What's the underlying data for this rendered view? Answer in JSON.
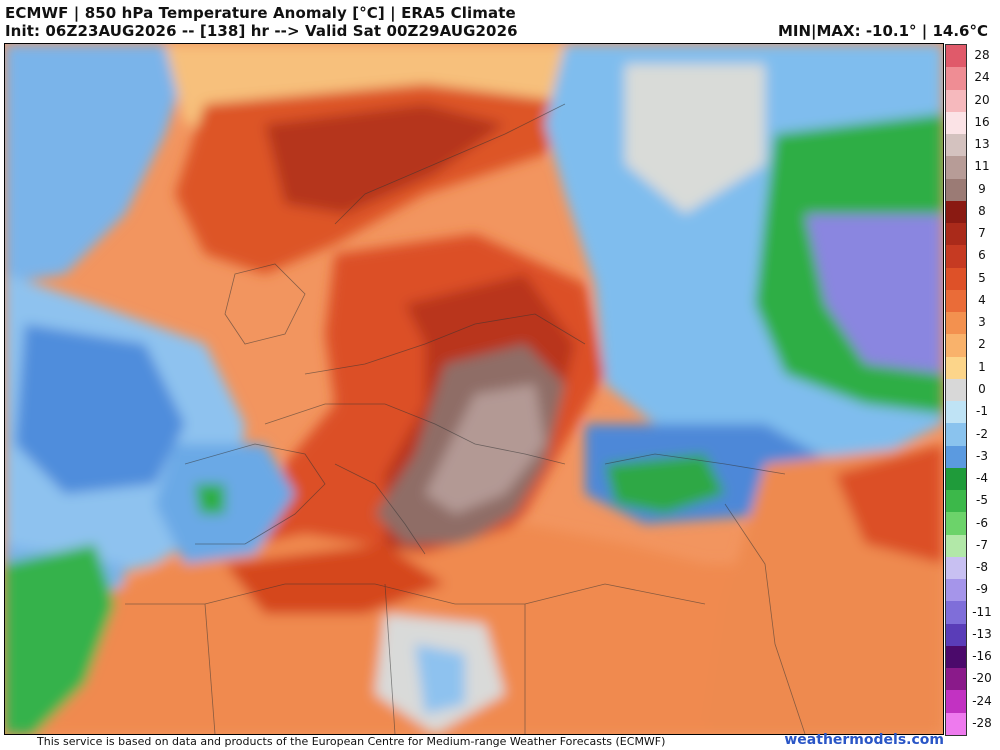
{
  "header": {
    "title": "ECMWF | 850 hPa Temperature Anomaly [°C] | ERA5 Climate",
    "subtitle": "Init: 06Z23AUG2026 -- [138] hr --> Valid Sat 00Z29AUG2026",
    "minmax": "MIN|MAX: -10.1° | 14.6°C"
  },
  "colorbar": {
    "labels": [
      "28",
      "24",
      "20",
      "16",
      "13",
      "11",
      "9",
      "8",
      "7",
      "6",
      "5",
      "4",
      "3",
      "2",
      "1",
      "0",
      "-1",
      "-2",
      "-3",
      "-4",
      "-5",
      "-6",
      "-7",
      "-8",
      "-9",
      "-11",
      "-13",
      "-16",
      "-20",
      "-24",
      "-28"
    ],
    "colors": [
      "#e05a6a",
      "#ef8d94",
      "#f6b9bd",
      "#fbe3e6",
      "#d4c2bf",
      "#b79c97",
      "#9b7b75",
      "#8a1a12",
      "#aa2a1a",
      "#c63a22",
      "#de5128",
      "#ea6c38",
      "#f3914f",
      "#f9b26b",
      "#fcd58a",
      "#d8d8d8",
      "#bfe3f5",
      "#8ac3ee",
      "#5b9ae0",
      "#1f9b3a",
      "#3cb84a",
      "#6cd36a",
      "#b2e8a8",
      "#c8c0f2",
      "#a595ea",
      "#7f6ed9",
      "#5a3db8",
      "#4b0a6b",
      "#8a1a8a",
      "#c232c2",
      "#ee7aee"
    ]
  },
  "map": {
    "description_colors": {
      "ocean_warm": "#f2955f",
      "heat_core": "#8f6d66",
      "cold_anomaly": "#2fb046",
      "cool_blue": "#6aa9e6"
    }
  },
  "footer": {
    "attribution": "This service is based on data and products of the European Centre for Medium-range Weather Forecasts (ECMWF)",
    "brand": "weathermodels.com"
  }
}
